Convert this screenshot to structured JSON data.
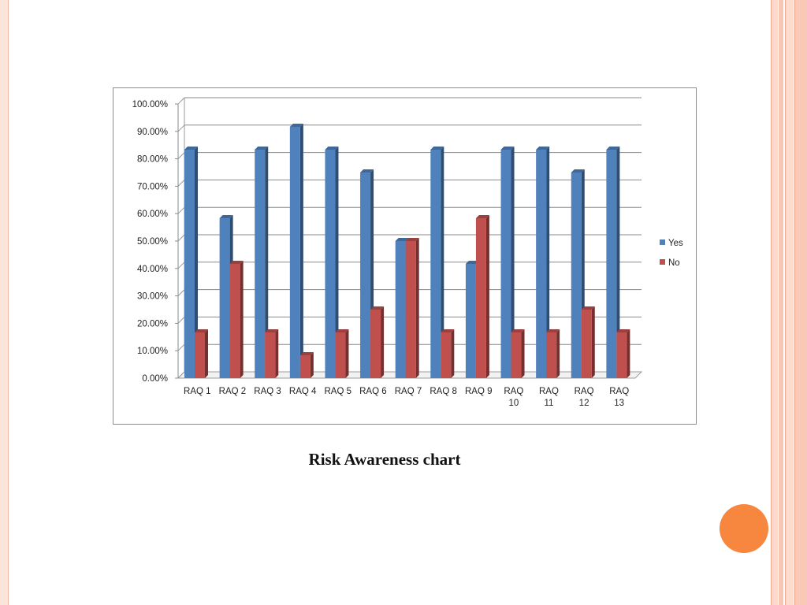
{
  "caption": "Risk Awareness chart",
  "colors": {
    "yes": "#4f81bd",
    "no": "#c0504d",
    "accent_dot": "#f7863f"
  },
  "chart_data": {
    "type": "bar",
    "title": "",
    "xlabel": "",
    "ylabel": "",
    "ylim": [
      0,
      100
    ],
    "yticks": [
      "0.00%",
      "10.00%",
      "20.00%",
      "30.00%",
      "40.00%",
      "50.00%",
      "60.00%",
      "70.00%",
      "80.00%",
      "90.00%",
      "100.00%"
    ],
    "grid": true,
    "legend_position": "right",
    "categories": [
      "RAQ 1",
      "RAQ 2",
      "RAQ 3",
      "RAQ 4",
      "RAQ 5",
      "RAQ 6",
      "RAQ 7",
      "RAQ 8",
      "RAQ 9",
      "RAQ 10",
      "RAQ 11",
      "RAQ 12",
      "RAQ 13"
    ],
    "series": [
      {
        "name": "Yes",
        "values": [
          83.33,
          58.33,
          83.33,
          91.67,
          83.33,
          75.0,
          50.0,
          83.33,
          41.67,
          83.33,
          83.33,
          75.0,
          83.33
        ]
      },
      {
        "name": "No",
        "values": [
          16.67,
          41.67,
          16.67,
          8.33,
          16.67,
          25.0,
          50.0,
          16.67,
          58.33,
          16.67,
          16.67,
          25.0,
          16.67
        ]
      }
    ]
  }
}
